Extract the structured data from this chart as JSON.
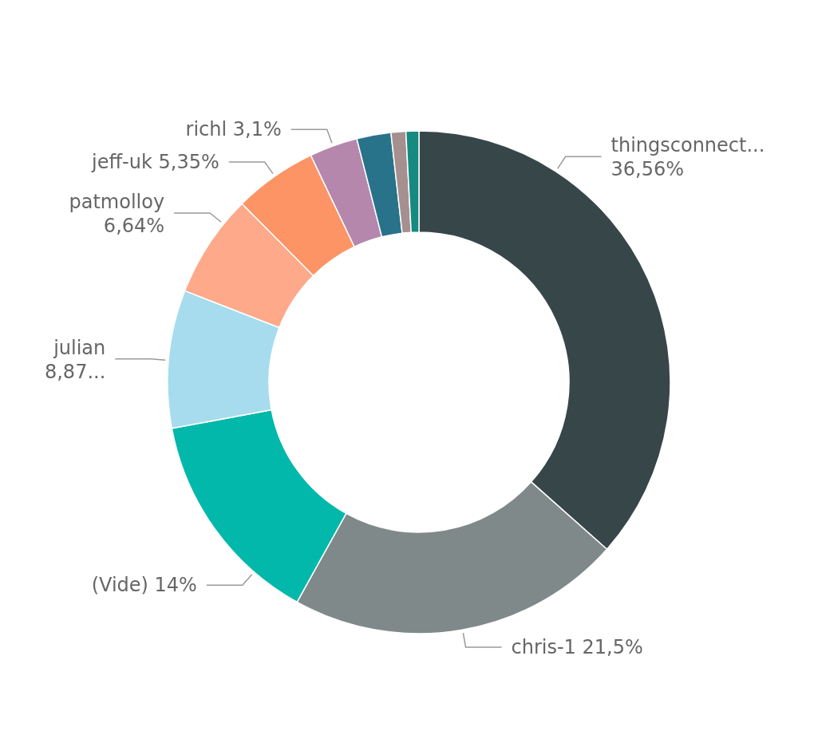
{
  "chart_data": {
    "type": "donut",
    "categories": [
      "thingsconnect...",
      "chris-1",
      "(Vide)",
      "julian",
      "patmolloy",
      "jeff-uk",
      "richl",
      null,
      null,
      null
    ],
    "values": [
      36.56,
      21.5,
      14,
      8.87,
      6.64,
      5.35,
      3.1,
      2.2,
      0.95,
      0.83
    ],
    "value_labels": [
      "36,56%",
      "21,5%",
      "14%",
      "8,87...",
      "6,64%",
      "5,35%",
      "3,1%",
      null,
      null,
      null
    ],
    "colors": [
      "#374649",
      "#7f898a",
      "#01b8aa",
      "#a6dcee",
      "#fda98a",
      "#fd9466",
      "#b587ad",
      "#28738a",
      "#a68f8f",
      "#168a80"
    ],
    "legend": false
  }
}
